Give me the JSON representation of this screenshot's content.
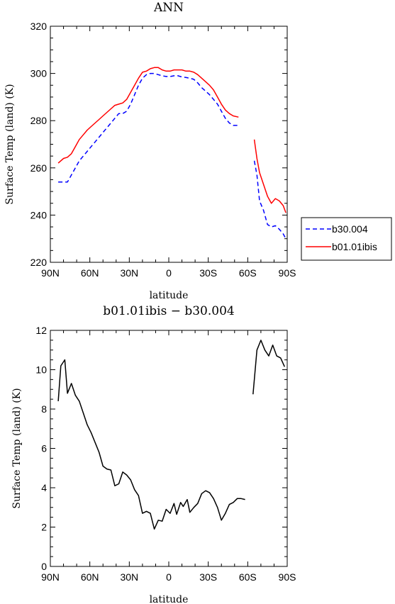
{
  "chart_data": [
    {
      "type": "line",
      "title": "ANN",
      "xlabel": "latitude",
      "ylabel": "Surface Temp (land) (K)",
      "xlim": [
        90,
        -90
      ],
      "ylim": [
        220,
        320
      ],
      "xticks": [
        90,
        60,
        30,
        0,
        -30,
        -60,
        -90
      ],
      "xtick_labels": [
        "90N",
        "60N",
        "30N",
        "0",
        "30S",
        "60S",
        "90S"
      ],
      "yticks": [
        220,
        240,
        260,
        280,
        300,
        320
      ],
      "ytick_labels": [
        "220",
        "240",
        "260",
        "280",
        "300",
        "320"
      ],
      "legend_position": "right",
      "series": [
        {
          "name": "b30.004",
          "color": "#0000ff",
          "style": "dashed",
          "segments": [
            [
              [
                84,
                254
              ],
              [
                80,
                254
              ],
              [
                77,
                254
              ],
              [
                74,
                257
              ],
              [
                71,
                260
              ],
              [
                68,
                263
              ],
              [
                65,
                265
              ],
              [
                62,
                267
              ],
              [
                59,
                269
              ],
              [
                56,
                271
              ],
              [
                53,
                273
              ],
              [
                50,
                275
              ],
              [
                47,
                277
              ],
              [
                44,
                279
              ],
              [
                41,
                281
              ],
              [
                38,
                283
              ],
              [
                35,
                283
              ],
              [
                32,
                284
              ],
              [
                29,
                287
              ],
              [
                26,
                291
              ],
              [
                23,
                295
              ],
              [
                20,
                298
              ],
              [
                17,
                299.5
              ],
              [
                14,
                300
              ],
              [
                11,
                300
              ],
              [
                8,
                299.5
              ],
              [
                5,
                299
              ],
              [
                2,
                298.7
              ],
              [
                -1,
                298.7
              ],
              [
                -4,
                299
              ],
              [
                -7,
                299
              ],
              [
                -10,
                298.5
              ],
              [
                -13,
                298.3
              ],
              [
                -16,
                298
              ],
              [
                -19,
                297.5
              ],
              [
                -22,
                296
              ],
              [
                -25,
                294
              ],
              [
                -28,
                292.5
              ],
              [
                -31,
                291
              ],
              [
                -34,
                289
              ],
              [
                -37,
                287
              ],
              [
                -40,
                284
              ],
              [
                -43,
                281
              ],
              [
                -46,
                279
              ],
              [
                -49,
                278
              ],
              [
                -53,
                278
              ]
            ],
            [
              [
                -65,
                263
              ],
              [
                -67,
                257
              ],
              [
                -69,
                246
              ],
              [
                -72,
                242
              ],
              [
                -75,
                236
              ],
              [
                -78,
                235
              ],
              [
                -81,
                235.5
              ],
              [
                -84,
                234
              ],
              [
                -87,
                232
              ],
              [
                -89,
                230
              ]
            ]
          ]
        },
        {
          "name": "b01.01ibis",
          "color": "#ff0000",
          "style": "solid",
          "segments": [
            [
              [
                84,
                262
              ],
              [
                80,
                264
              ],
              [
                77,
                264.5
              ],
              [
                74,
                266
              ],
              [
                71,
                269
              ],
              [
                68,
                272
              ],
              [
                65,
                274
              ],
              [
                62,
                276
              ],
              [
                59,
                277.5
              ],
              [
                56,
                279
              ],
              [
                53,
                280.5
              ],
              [
                50,
                282
              ],
              [
                47,
                283.5
              ],
              [
                44,
                285
              ],
              [
                41,
                286.5
              ],
              [
                38,
                287
              ],
              [
                35,
                287.5
              ],
              [
                32,
                289
              ],
              [
                29,
                292
              ],
              [
                26,
                295
              ],
              [
                23,
                298
              ],
              [
                20,
                300.5
              ],
              [
                17,
                301
              ],
              [
                14,
                302
              ],
              [
                11,
                302.5
              ],
              [
                8,
                302.5
              ],
              [
                5,
                301.5
              ],
              [
                2,
                301
              ],
              [
                -1,
                301
              ],
              [
                -4,
                301.5
              ],
              [
                -7,
                301.5
              ],
              [
                -10,
                301.5
              ],
              [
                -13,
                301
              ],
              [
                -16,
                301
              ],
              [
                -19,
                300.5
              ],
              [
                -22,
                299.5
              ],
              [
                -25,
                298
              ],
              [
                -28,
                296.5
              ],
              [
                -31,
                295
              ],
              [
                -34,
                293
              ],
              [
                -37,
                290
              ],
              [
                -40,
                287
              ],
              [
                -43,
                284.5
              ],
              [
                -46,
                283
              ],
              [
                -49,
                282
              ],
              [
                -53,
                281.5
              ]
            ],
            [
              [
                -65,
                272
              ],
              [
                -67,
                264
              ],
              [
                -69,
                258
              ],
              [
                -72,
                253
              ],
              [
                -75,
                248
              ],
              [
                -78,
                245
              ],
              [
                -81,
                247
              ],
              [
                -84,
                246
              ],
              [
                -87,
                244
              ],
              [
                -89,
                241
              ]
            ]
          ]
        }
      ]
    },
    {
      "type": "line",
      "title": "b01.01ibis − b30.004",
      "xlabel": "latitude",
      "ylabel": "Surface Temp (land) (K)",
      "xlim": [
        90,
        -90
      ],
      "ylim": [
        0,
        12
      ],
      "xticks": [
        90,
        60,
        30,
        0,
        -30,
        -60,
        -90
      ],
      "xtick_labels": [
        "90N",
        "60N",
        "30N",
        "0",
        "30S",
        "60S",
        "90S"
      ],
      "yticks": [
        0,
        2,
        4,
        6,
        8,
        10,
        12
      ],
      "ytick_labels": [
        "0",
        "2",
        "4",
        "6",
        "8",
        "10",
        "12"
      ],
      "series": [
        {
          "color": "#000000",
          "style": "solid",
          "segments": [
            [
              [
                84,
                8.4
              ],
              [
                82,
                10.2
              ],
              [
                79,
                10.5
              ],
              [
                77,
                8.8
              ],
              [
                74,
                9.3
              ],
              [
                71,
                8.7
              ],
              [
                68,
                8.4
              ],
              [
                65,
                7.8
              ],
              [
                62,
                7.2
              ],
              [
                59,
                6.8
              ],
              [
                56,
                6.3
              ],
              [
                53,
                5.8
              ],
              [
                50,
                5.1
              ],
              [
                47,
                4.95
              ],
              [
                44,
                4.9
              ],
              [
                41,
                4.1
              ],
              [
                38,
                4.2
              ],
              [
                35,
                4.8
              ],
              [
                32,
                4.65
              ],
              [
                29,
                4.4
              ],
              [
                26,
                3.9
              ],
              [
                23,
                3.6
              ],
              [
                20,
                2.7
              ],
              [
                17,
                2.8
              ],
              [
                14,
                2.7
              ],
              [
                11,
                1.9
              ],
              [
                8,
                2.35
              ],
              [
                5,
                2.3
              ],
              [
                2,
                2.9
              ],
              [
                -1,
                2.7
              ],
              [
                -4,
                3.2
              ],
              [
                -6,
                2.65
              ],
              [
                -9,
                3.25
              ],
              [
                -11,
                3.05
              ],
              [
                -14,
                3.4
              ],
              [
                -16,
                2.75
              ],
              [
                -19,
                3.0
              ],
              [
                -22,
                3.2
              ],
              [
                -25,
                3.7
              ],
              [
                -28,
                3.85
              ],
              [
                -31,
                3.75
              ],
              [
                -34,
                3.45
              ],
              [
                -37,
                3.0
              ],
              [
                -40,
                2.35
              ],
              [
                -43,
                2.7
              ],
              [
                -46,
                3.15
              ],
              [
                -49,
                3.25
              ],
              [
                -52,
                3.45
              ],
              [
                -55,
                3.45
              ],
              [
                -58,
                3.4
              ]
            ],
            [
              [
                -64,
                8.75
              ],
              [
                -67,
                11.0
              ],
              [
                -70,
                11.5
              ],
              [
                -73,
                11.0
              ],
              [
                -76,
                10.7
              ],
              [
                -79,
                11.25
              ],
              [
                -82,
                10.7
              ],
              [
                -85,
                10.6
              ],
              [
                -88,
                10.15
              ]
            ]
          ]
        }
      ]
    }
  ]
}
